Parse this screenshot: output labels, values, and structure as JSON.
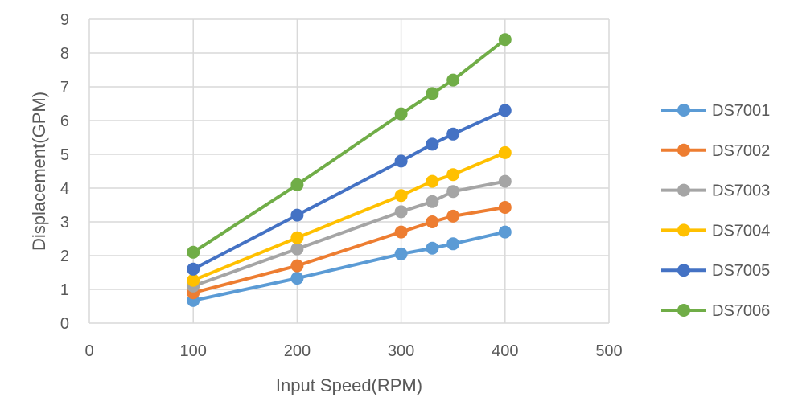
{
  "chart_data": {
    "type": "line",
    "xlabel": "Input Speed(RPM)",
    "ylabel": "Displacement(GPM)",
    "xlim": [
      0,
      500
    ],
    "ylim": [
      0,
      9
    ],
    "xticks": [
      0,
      100,
      200,
      300,
      400,
      500
    ],
    "yticks": [
      0,
      1,
      2,
      3,
      4,
      5,
      6,
      7,
      8,
      9
    ],
    "grid": true,
    "legend_position": "right",
    "x": [
      100,
      200,
      300,
      330,
      350,
      400
    ],
    "series": [
      {
        "name": "DS7001",
        "color": "#5B9BD5",
        "values": [
          0.67,
          1.33,
          2.05,
          2.22,
          2.35,
          2.7
        ]
      },
      {
        "name": "DS7002",
        "color": "#ED7D31",
        "values": [
          0.9,
          1.7,
          2.7,
          3.0,
          3.17,
          3.43
        ]
      },
      {
        "name": "DS7003",
        "color": "#A5A5A5",
        "values": [
          1.1,
          2.2,
          3.3,
          3.6,
          3.9,
          4.2
        ]
      },
      {
        "name": "DS7004",
        "color": "#FFC000",
        "values": [
          1.27,
          2.53,
          3.78,
          4.2,
          4.4,
          5.05
        ]
      },
      {
        "name": "DS7005",
        "color": "#4472C4",
        "values": [
          1.6,
          3.2,
          4.8,
          5.3,
          5.6,
          6.3
        ]
      },
      {
        "name": "DS7006",
        "color": "#70AD47",
        "values": [
          2.1,
          4.1,
          6.2,
          6.8,
          7.2,
          8.4
        ]
      }
    ],
    "gridline_color": "#D9D9D9"
  }
}
